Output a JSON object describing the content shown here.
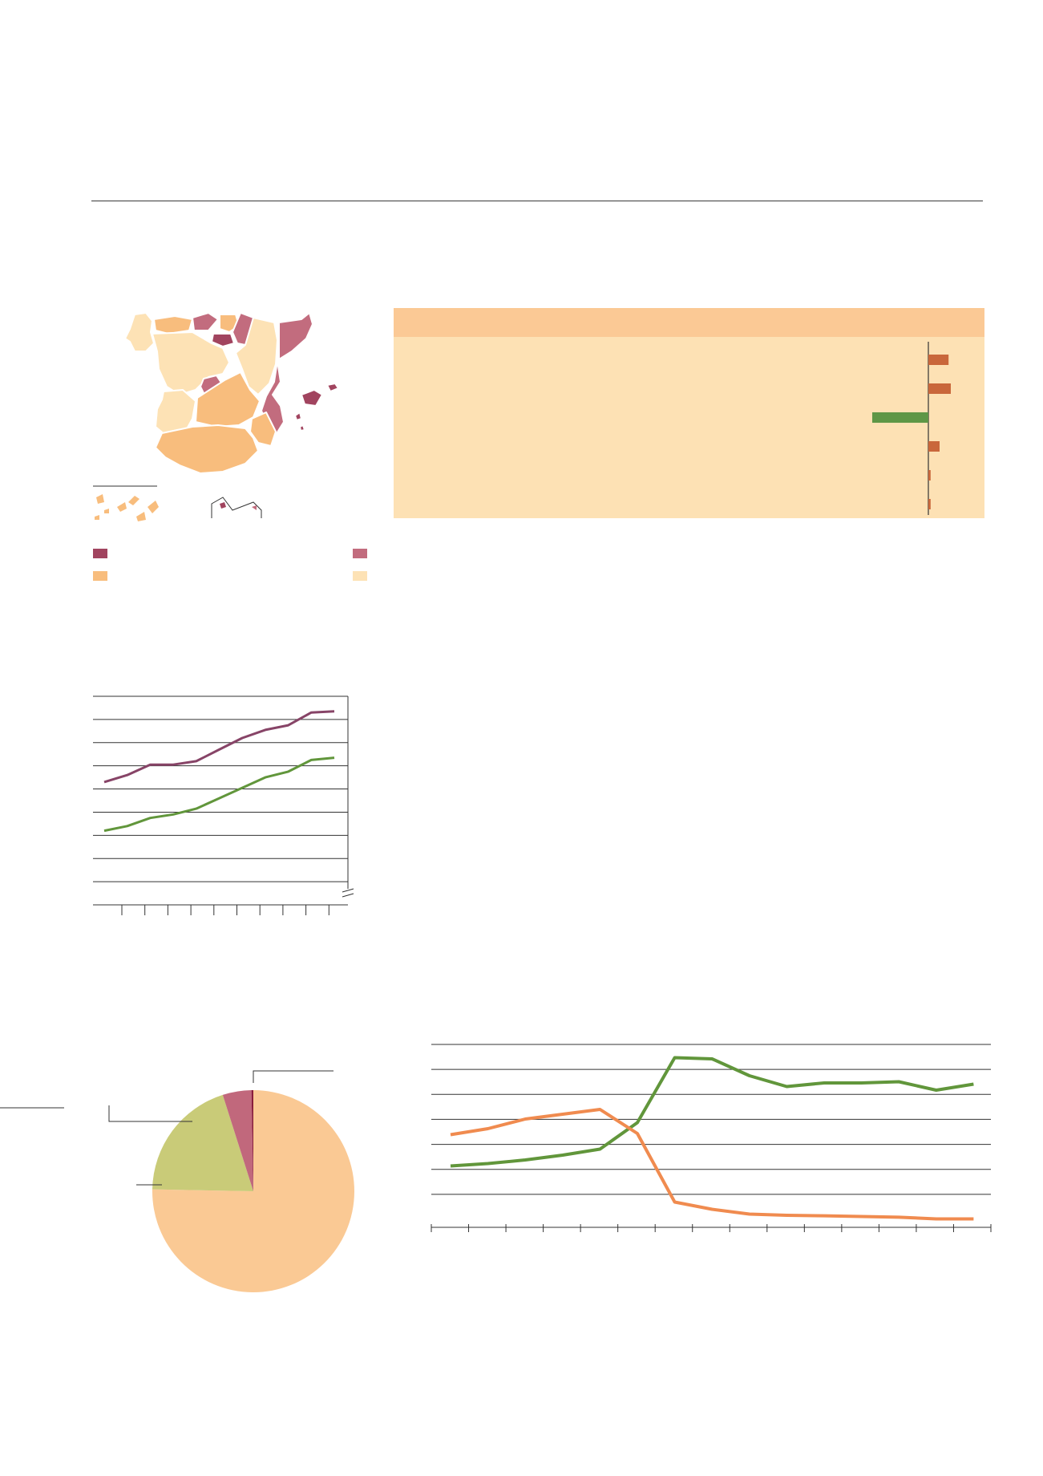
{
  "colors": {
    "dark_plum": "#a1445f",
    "pink": "#c26c7e",
    "orange": "#f8bd7d",
    "light_peach": "#fde2b5",
    "panel_bg": "#fde1b4",
    "panel_header": "#fbc995",
    "bar_orange": "#c9673b",
    "bar_green": "#5e9646",
    "line_plum": "#874467",
    "line_green": "#61963b",
    "line_orange": "#f08b4f",
    "pie_peach": "#fac994",
    "pie_olive": "#c9cb78",
    "pie_pink": "#c1687c",
    "pie_dark": "#8a1e3c",
    "grid": "#333333"
  },
  "map": {
    "legend": [
      {
        "color": "#a1445f"
      },
      {
        "color": "#c26c7e"
      },
      {
        "color": "#f8bd7d"
      },
      {
        "color": "#fde2b5"
      }
    ]
  },
  "chart_data": [
    {
      "type": "bar",
      "orientation": "horizontal",
      "categories": [
        "",
        "",
        "",
        "",
        "",
        ""
      ],
      "values": [
        18,
        20,
        -50,
        10,
        2,
        2
      ],
      "series_colors": [
        "#c9673b",
        "#c9673b",
        "#5e9646",
        "#c9673b",
        "#c9673b",
        "#c9673b"
      ]
    },
    {
      "type": "line",
      "x": [
        0,
        1,
        2,
        3,
        4,
        5,
        6,
        7,
        8,
        9,
        10
      ],
      "series": [
        {
          "values": [
            5.3,
            5.6,
            6.05,
            6.05,
            6.2,
            6.7,
            7.2,
            7.55,
            7.75,
            8.3,
            8.35
          ],
          "color": "#874467"
        },
        {
          "values": [
            3.2,
            3.4,
            3.75,
            3.9,
            4.15,
            4.6,
            5.05,
            5.5,
            5.75,
            6.25,
            6.35
          ],
          "color": "#61963b"
        }
      ],
      "ylim": [
        0,
        9
      ],
      "y_gridlines": 9,
      "axis_break": true
    },
    {
      "type": "pie",
      "values": [
        75.3,
        19.8,
        4.6,
        0.3
      ],
      "colors": [
        "#fac994",
        "#c9cb78",
        "#c1687c",
        "#8a1e3c"
      ]
    },
    {
      "type": "line",
      "x": [
        0,
        1,
        2,
        3,
        4,
        5,
        6,
        7,
        8,
        9,
        10,
        11,
        12,
        13,
        14
      ],
      "series": [
        {
          "values": [
            1.75,
            1.85,
            2.0,
            2.2,
            2.45,
            3.55,
            6.25,
            6.2,
            5.5,
            5.05,
            5.2,
            5.2,
            5.25,
            4.9,
            5.15
          ],
          "color": "#61963b"
        },
        {
          "values": [
            3.05,
            3.3,
            3.7,
            3.9,
            4.1,
            3.1,
            0.25,
            -0.05,
            -0.25,
            -0.3,
            -0.32,
            -0.35,
            -0.38,
            -0.45,
            -0.45
          ],
          "color": "#f08b4f"
        }
      ],
      "ylim": [
        -0.8,
        6.8
      ],
      "x_ticks": 16
    }
  ]
}
